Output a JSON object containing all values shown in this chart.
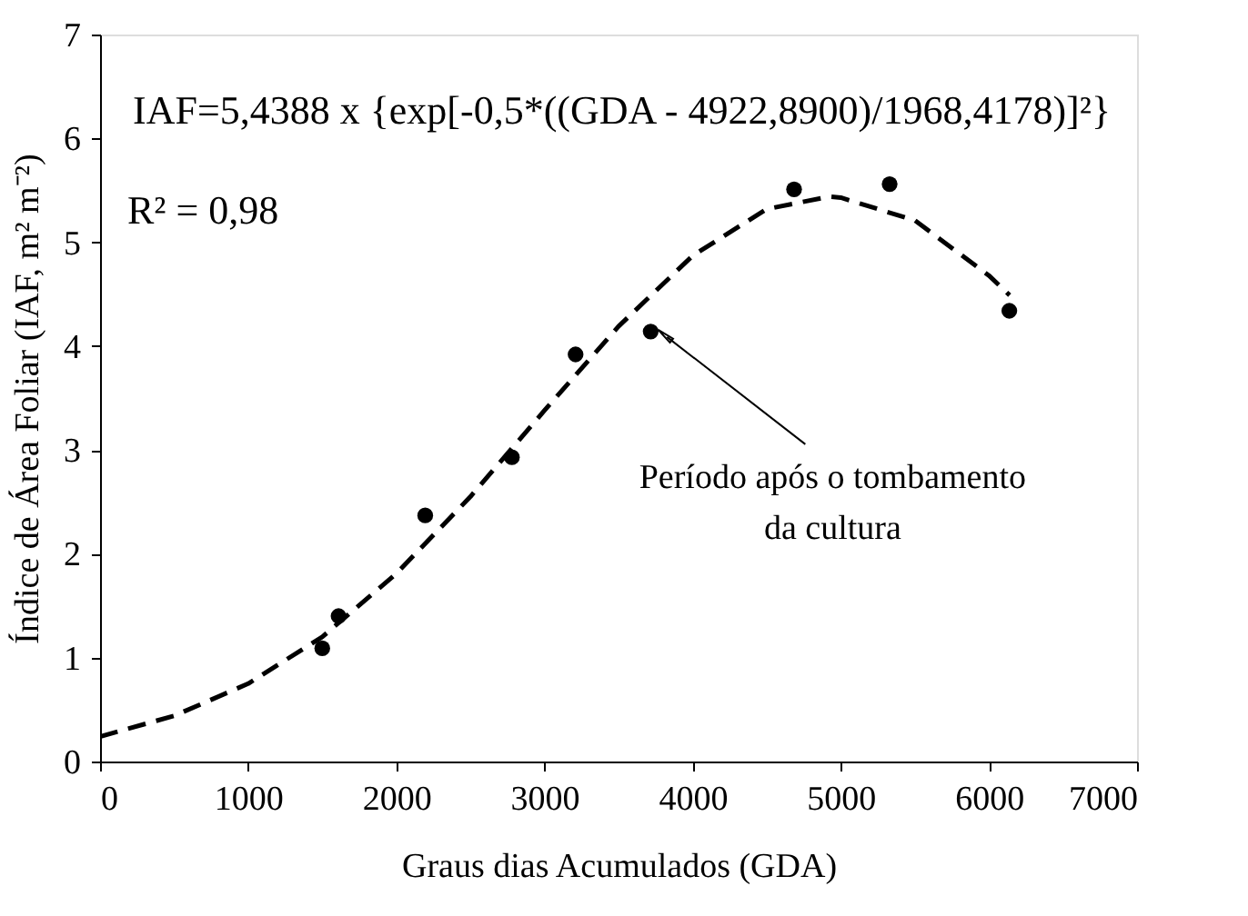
{
  "chart_data": {
    "type": "scatter",
    "xlabel": "Graus dias Acumulados (GDA)",
    "ylabel": "Índice de Área Foliar (IAF, m² m⁻²)",
    "xlim": [
      0,
      7000
    ],
    "ylim": [
      0,
      7
    ],
    "xticks": [
      0,
      1000,
      2000,
      3000,
      4000,
      5000,
      6000,
      7000
    ],
    "yticks": [
      0,
      1,
      2,
      3,
      4,
      5,
      6,
      7
    ],
    "grid": false,
    "marker": "circle",
    "series": [
      {
        "color": "#000000",
        "x": [
          1500,
          1610,
          2195,
          2780,
          3210,
          3717,
          4685,
          5330,
          6138
        ],
        "values": [
          1.09,
          1.4,
          2.37,
          2.93,
          3.92,
          4.14,
          5.51,
          5.56,
          4.34
        ]
      },
      {
        "type": "line",
        "color": "#000000",
        "line_style": "dashed",
        "marker": "none",
        "x": [
          0,
          500,
          1000,
          1500,
          2000,
          2500,
          3000,
          3500,
          4000,
          4500,
          4923,
          5000,
          5500,
          6000,
          6140
        ],
        "values": [
          0.24,
          0.44,
          0.75,
          1.2,
          1.81,
          2.55,
          3.38,
          4.19,
          4.87,
          5.32,
          5.44,
          5.43,
          5.21,
          4.68,
          4.49
        ]
      }
    ],
    "annotations": [
      "IAF=5,4388 x {exp[-0,5*((GDA - 4922,8900)/1968,4178)]²}",
      "R² = 0,98",
      {
        "text": "Período após o tombamento\nda cultura",
        "x": 3717,
        "y": 4.14
      }
    ]
  }
}
